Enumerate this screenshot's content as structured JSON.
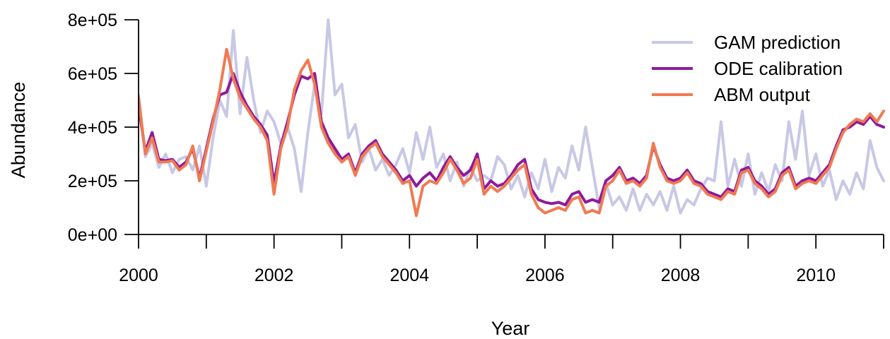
{
  "chart_data": {
    "type": "line",
    "title": "",
    "xlabel": "Year",
    "ylabel": "Abundance",
    "xlim": [
      2000,
      2011
    ],
    "ylim": [
      0,
      800000
    ],
    "x_ticks": [
      2000,
      2001,
      2002,
      2003,
      2004,
      2005,
      2006,
      2007,
      2008,
      2009,
      2010,
      2011
    ],
    "x_tick_labels": [
      "2000",
      "",
      "2002",
      "",
      "2004",
      "",
      "2006",
      "",
      "2008",
      "",
      "2010",
      ""
    ],
    "y_ticks": [
      0,
      200000,
      400000,
      600000,
      800000
    ],
    "y_tick_labels": [
      "0e+00",
      "2e+05",
      "4e+05",
      "6e+05",
      "8e+05"
    ],
    "grid": false,
    "legend_position": "top-right",
    "x": [
      2000.0,
      2000.1,
      2000.2,
      2000.3,
      2000.4,
      2000.5,
      2000.6,
      2000.7,
      2000.8,
      2000.9,
      2001.0,
      2001.1,
      2001.2,
      2001.3,
      2001.4,
      2001.5,
      2001.6,
      2001.7,
      2001.8,
      2001.9,
      2002.0,
      2002.1,
      2002.2,
      2002.3,
      2002.4,
      2002.5,
      2002.6,
      2002.7,
      2002.8,
      2002.9,
      2003.0,
      2003.1,
      2003.2,
      2003.3,
      2003.4,
      2003.5,
      2003.6,
      2003.7,
      2003.8,
      2003.9,
      2004.0,
      2004.1,
      2004.2,
      2004.3,
      2004.4,
      2004.5,
      2004.6,
      2004.7,
      2004.8,
      2004.9,
      2005.0,
      2005.1,
      2005.2,
      2005.3,
      2005.4,
      2005.5,
      2005.6,
      2005.7,
      2005.8,
      2005.9,
      2006.0,
      2006.1,
      2006.2,
      2006.3,
      2006.4,
      2006.5,
      2006.6,
      2006.7,
      2006.8,
      2006.9,
      2007.0,
      2007.1,
      2007.2,
      2007.3,
      2007.4,
      2007.5,
      2007.6,
      2007.7,
      2007.8,
      2007.9,
      2008.0,
      2008.1,
      2008.2,
      2008.3,
      2008.4,
      2008.5,
      2008.6,
      2008.7,
      2008.8,
      2008.9,
      2009.0,
      2009.1,
      2009.2,
      2009.3,
      2009.4,
      2009.5,
      2009.6,
      2009.7,
      2009.8,
      2009.9,
      2010.0,
      2010.1,
      2010.2,
      2010.3,
      2010.4,
      2010.5,
      2010.6,
      2010.7,
      2010.8,
      2010.9,
      2011.0
    ],
    "series": [
      {
        "name": "GAM prediction",
        "color": "#c8c8e6",
        "width": 4,
        "values": [
          520000,
          290000,
          340000,
          250000,
          300000,
          230000,
          280000,
          290000,
          240000,
          330000,
          180000,
          360000,
          500000,
          440000,
          760000,
          450000,
          660000,
          500000,
          380000,
          460000,
          420000,
          340000,
          400000,
          320000,
          160000,
          380000,
          560000,
          450000,
          800000,
          520000,
          560000,
          360000,
          410000,
          270000,
          320000,
          240000,
          280000,
          220000,
          260000,
          320000,
          230000,
          380000,
          280000,
          400000,
          250000,
          300000,
          200000,
          270000,
          180000,
          250000,
          200000,
          220000,
          200000,
          290000,
          260000,
          170000,
          220000,
          140000,
          230000,
          170000,
          280000,
          160000,
          250000,
          210000,
          330000,
          240000,
          400000,
          250000,
          100000,
          190000,
          110000,
          140000,
          90000,
          170000,
          90000,
          150000,
          110000,
          160000,
          90000,
          180000,
          80000,
          130000,
          110000,
          170000,
          210000,
          200000,
          420000,
          180000,
          280000,
          180000,
          300000,
          150000,
          230000,
          160000,
          260000,
          200000,
          420000,
          280000,
          460000,
          220000,
          300000,
          180000,
          240000,
          130000,
          200000,
          150000,
          230000,
          170000,
          350000,
          250000,
          200000
        ],
        "note_lines": []
      },
      {
        "name": "ODE calibration",
        "color": "#8e1a9c",
        "width": 4,
        "values": [
          480000,
          310000,
          380000,
          280000,
          275000,
          280000,
          250000,
          270000,
          320000,
          210000,
          320000,
          430000,
          520000,
          530000,
          600000,
          530000,
          480000,
          440000,
          410000,
          370000,
          190000,
          330000,
          420000,
          520000,
          590000,
          580000,
          600000,
          420000,
          360000,
          320000,
          280000,
          300000,
          230000,
          300000,
          330000,
          350000,
          300000,
          270000,
          240000,
          200000,
          220000,
          180000,
          210000,
          230000,
          200000,
          250000,
          290000,
          250000,
          220000,
          240000,
          300000,
          170000,
          200000,
          180000,
          190000,
          220000,
          260000,
          280000,
          170000,
          130000,
          120000,
          115000,
          120000,
          110000,
          150000,
          160000,
          120000,
          130000,
          120000,
          200000,
          220000,
          250000,
          200000,
          210000,
          190000,
          220000,
          330000,
          260000,
          210000,
          200000,
          210000,
          240000,
          200000,
          190000,
          160000,
          150000,
          140000,
          170000,
          160000,
          240000,
          250000,
          200000,
          180000,
          150000,
          170000,
          230000,
          250000,
          180000,
          200000,
          210000,
          200000,
          230000,
          260000,
          330000,
          390000,
          400000,
          420000,
          410000,
          440000,
          410000,
          400000
        ],
        "note_lines": []
      },
      {
        "name": "ABM output",
        "color": "#f07a52",
        "width": 4,
        "values": [
          510000,
          300000,
          360000,
          270000,
          270000,
          275000,
          240000,
          260000,
          330000,
          200000,
          310000,
          420000,
          540000,
          690000,
          580000,
          510000,
          470000,
          430000,
          400000,
          350000,
          150000,
          320000,
          400000,
          540000,
          610000,
          650000,
          560000,
          400000,
          340000,
          300000,
          270000,
          290000,
          220000,
          290000,
          320000,
          340000,
          290000,
          260000,
          230000,
          190000,
          200000,
          70000,
          180000,
          200000,
          190000,
          230000,
          280000,
          240000,
          190000,
          210000,
          280000,
          150000,
          180000,
          160000,
          180000,
          210000,
          240000,
          260000,
          150000,
          100000,
          80000,
          90000,
          100000,
          90000,
          130000,
          140000,
          80000,
          90000,
          80000,
          180000,
          200000,
          240000,
          190000,
          200000,
          180000,
          210000,
          340000,
          250000,
          200000,
          190000,
          200000,
          230000,
          190000,
          180000,
          150000,
          140000,
          130000,
          160000,
          150000,
          230000,
          240000,
          190000,
          170000,
          140000,
          160000,
          220000,
          240000,
          170000,
          190000,
          200000,
          190000,
          220000,
          250000,
          320000,
          380000,
          410000,
          430000,
          420000,
          450000,
          420000,
          460000
        ],
        "note_lines": []
      }
    ]
  }
}
